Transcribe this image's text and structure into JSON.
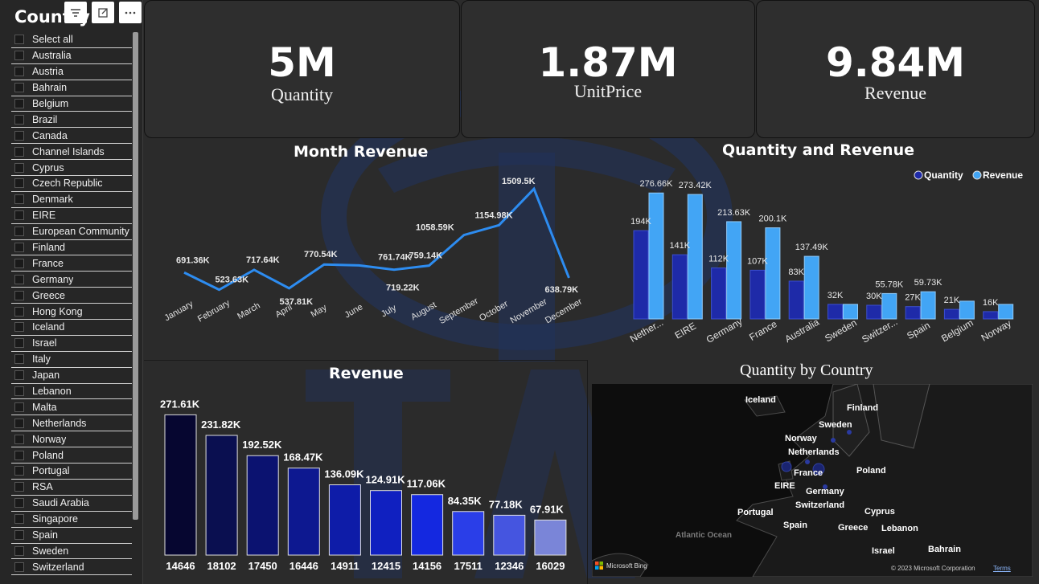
{
  "slicer": {
    "title": "Country",
    "items": [
      "Select all",
      "Australia",
      "Austria",
      "Bahrain",
      "Belgium",
      "Brazil",
      "Canada",
      "Channel Islands",
      "Cyprus",
      "Czech Republic",
      "Denmark",
      "EIRE",
      "European Community",
      "Finland",
      "France",
      "Germany",
      "Greece",
      "Hong Kong",
      "Iceland",
      "Israel",
      "Italy",
      "Japan",
      "Lebanon",
      "Malta",
      "Netherlands",
      "Norway",
      "Poland",
      "Portugal",
      "RSA",
      "Saudi Arabia",
      "Singapore",
      "Spain",
      "Sweden",
      "Switzerland"
    ]
  },
  "kpis": [
    {
      "value": "5M",
      "label": "Quantity"
    },
    {
      "value": "1.87M",
      "label": "UnitPrice"
    },
    {
      "value": "9.84M",
      "label": "Revenue"
    }
  ],
  "chart_data": [
    {
      "type": "line",
      "title": "Month Revenue",
      "categories": [
        "January",
        "February",
        "March",
        "April",
        "May",
        "June",
        "July",
        "August",
        "September",
        "October",
        "November",
        "December"
      ],
      "values": [
        691.36,
        523.63,
        717.64,
        537.81,
        770.54,
        761.74,
        719.22,
        759.14,
        1058.59,
        1154.98,
        1509.5,
        638.79
      ],
      "labels": [
        "691.36K",
        "523.63K",
        "717.64K",
        "537.81K",
        "770.54K",
        "",
        "761.74K / 719.22K",
        "759.14K",
        "1058.59K",
        "1154.98K",
        "1509.5K",
        "638.79K"
      ],
      "color": "#2d8cf0"
    },
    {
      "type": "bar",
      "title": "Quantity and Revenue",
      "legend": [
        "Quantity",
        "Revenue"
      ],
      "legend_position": "top-right",
      "categories": [
        "Nether...",
        "EIRE",
        "Germany",
        "France",
        "Australia",
        "Sweden",
        "Switzer...",
        "Spain",
        "Belgium",
        "Norway"
      ],
      "series": [
        {
          "name": "Quantity",
          "values": [
            194,
            141,
            112,
            107,
            83,
            32,
            30,
            27,
            21,
            16
          ],
          "labels": [
            "194K",
            "141K",
            "112K",
            "107K",
            "83K",
            "32K",
            "30K",
            "27K",
            "21K",
            "16K"
          ],
          "color": "#1e2aa8"
        },
        {
          "name": "Revenue",
          "values": [
            276.66,
            273.42,
            213.63,
            200.1,
            137.49,
            32,
            55.78,
            59.73,
            39,
            32
          ],
          "labels": [
            "276.66K",
            "273.42K",
            "213.63K",
            "200.1K",
            "137.49K",
            "",
            "55.78K",
            "59.73K",
            "",
            ""
          ],
          "color": "#42a5f5"
        }
      ]
    },
    {
      "type": "bar",
      "title": "Revenue",
      "categories": [
        "14646",
        "18102",
        "17450",
        "16446",
        "14911",
        "12415",
        "14156",
        "17511",
        "12346",
        "16029"
      ],
      "values": [
        271.61,
        231.82,
        192.52,
        168.47,
        136.09,
        124.91,
        117.06,
        84.35,
        77.18,
        67.91
      ],
      "labels": [
        "271.61K",
        "231.82K",
        "192.52K",
        "168.47K",
        "136.09K",
        "124.91K",
        "117.06K",
        "84.35K",
        "77.18K",
        "67.91K"
      ],
      "colors": [
        "#060630",
        "#0a0f50",
        "#0b1270",
        "#0d1890",
        "#0e1ca8",
        "#1020c0",
        "#1428e0",
        "#2a3ee8",
        "#4555e0",
        "#7a85d8"
      ]
    }
  ],
  "map": {
    "title": "Quantity by Country",
    "labels": [
      "Iceland",
      "Finland",
      "Sweden",
      "Norway",
      "Netherlands",
      "Poland",
      "France",
      "EIRE",
      "Germany",
      "Portugal",
      "Switzerland",
      "Cyprus",
      "Spain",
      "Greece",
      "Lebanon",
      "Israel",
      "Bahrain",
      "Atlantic Ocean"
    ],
    "attribution": "© 2023 Microsoft Corporation",
    "terms": "Terms",
    "brand": "Microsoft Bing"
  }
}
